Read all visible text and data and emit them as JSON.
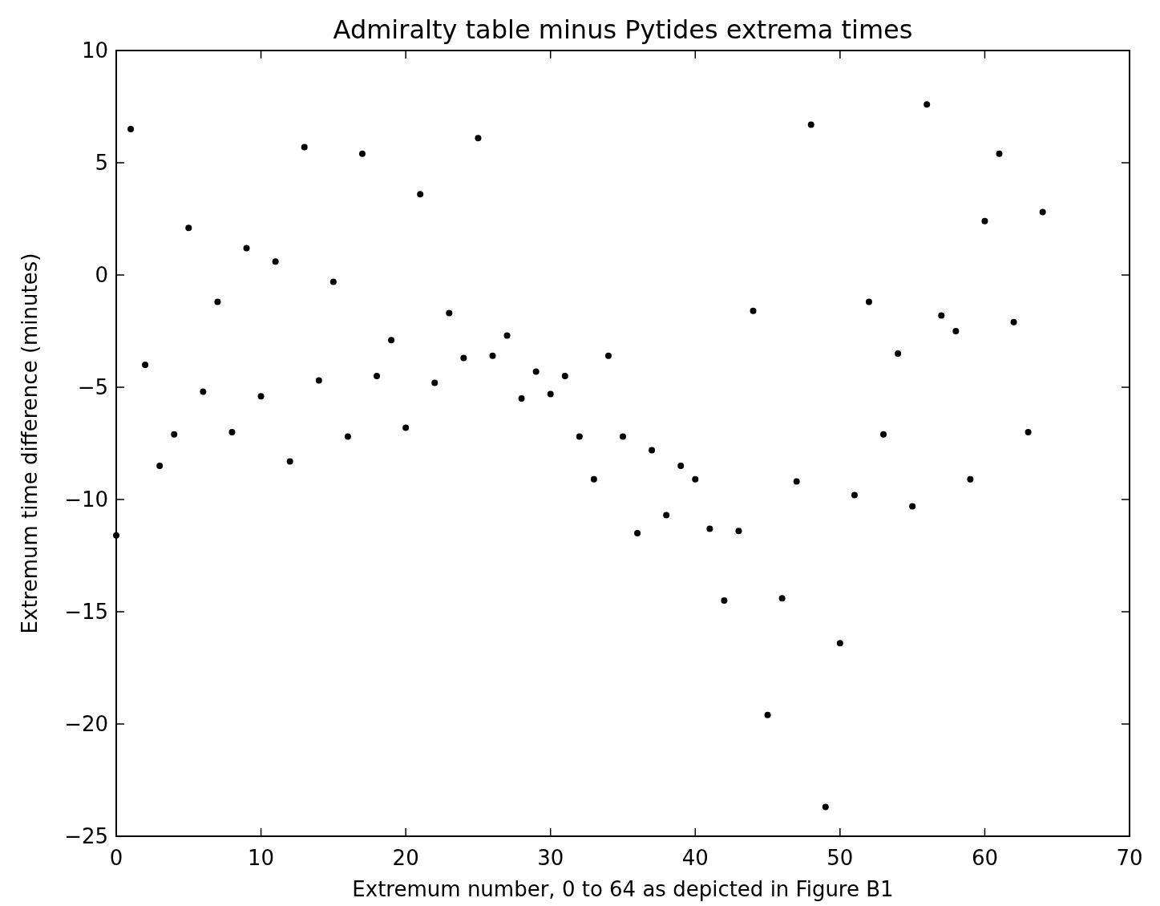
{
  "chart_data": {
    "type": "scatter",
    "title": "Admiralty table minus Pytides extrema times",
    "xlabel": "Extremum number, 0 to 64 as depicted in Figure B1",
    "ylabel": "Extremum time difference (minutes)",
    "x": [
      0,
      1,
      2,
      3,
      4,
      5,
      6,
      7,
      8,
      9,
      10,
      11,
      12,
      13,
      14,
      15,
      16,
      17,
      18,
      19,
      20,
      21,
      22,
      23,
      24,
      25,
      26,
      27,
      28,
      29,
      30,
      31,
      32,
      33,
      34,
      35,
      36,
      37,
      38,
      39,
      40,
      41,
      42,
      43,
      44,
      45,
      46,
      47,
      48,
      49,
      50,
      51,
      52,
      53,
      54,
      55,
      56,
      57,
      58,
      59,
      60,
      61,
      62,
      63,
      64
    ],
    "series": [
      {
        "color": "#000000",
        "values": [
          -11.6,
          6.5,
          -4.0,
          -8.5,
          -7.1,
          2.1,
          -5.2,
          -1.2,
          -7.0,
          1.2,
          -5.4,
          0.6,
          -8.3,
          5.7,
          -4.7,
          -0.3,
          -7.2,
          5.4,
          -4.5,
          -2.9,
          -6.8,
          3.6,
          -4.8,
          -1.7,
          -3.7,
          6.1,
          -3.6,
          -2.7,
          -5.5,
          -4.3,
          -5.3,
          -4.5,
          -7.2,
          -9.1,
          -3.6,
          -7.2,
          -11.5,
          -7.8,
          -10.7,
          -8.5,
          -9.1,
          -11.3,
          -14.5,
          -11.4,
          -1.6,
          -19.6,
          -14.4,
          -9.2,
          6.7,
          -23.7,
          -16.4,
          -9.8,
          -1.2,
          -7.1,
          -3.5,
          -10.3,
          7.6,
          -1.8,
          -2.5,
          -9.1,
          2.4,
          5.4,
          -2.1,
          -7.0,
          2.8
        ]
      }
    ],
    "xlim": [
      0,
      70
    ],
    "xticks": [
      0,
      10,
      20,
      30,
      40,
      50,
      60,
      70
    ],
    "ylim": [
      -25,
      10
    ],
    "yticks": [
      -25,
      -20,
      -15,
      -10,
      -5,
      0,
      5,
      10
    ],
    "marker": "circle"
  }
}
